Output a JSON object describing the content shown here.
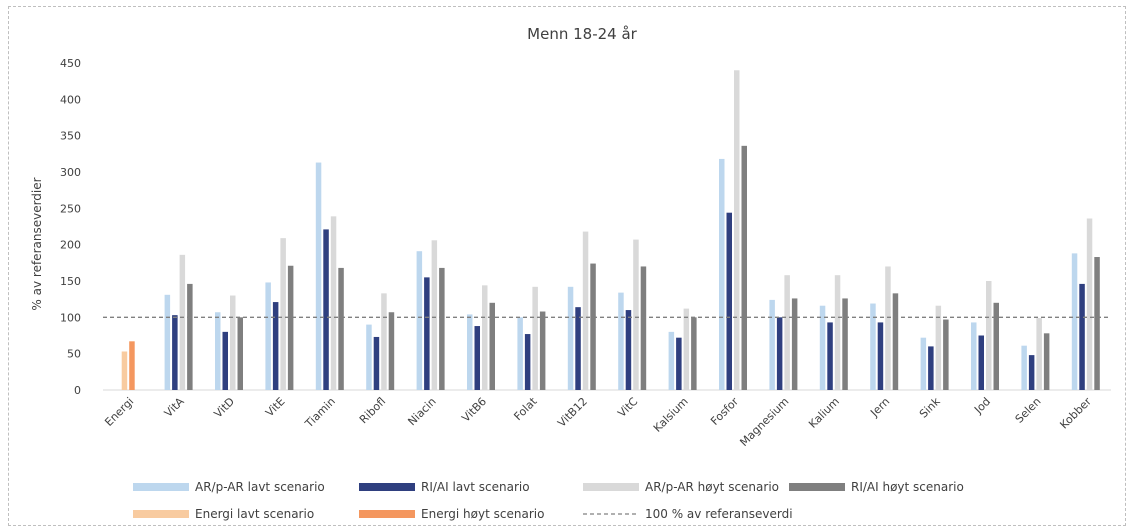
{
  "chart_data": {
    "type": "bar",
    "title": "Menn 18-24 år",
    "xlabel": "",
    "ylabel": "% av referanseverdier",
    "ylim": [
      0,
      450
    ],
    "yticks": [
      0,
      50,
      100,
      150,
      200,
      250,
      300,
      350,
      400,
      450
    ],
    "grid": false,
    "legend_position": "bottom",
    "reference_line": {
      "value": 100,
      "label": "100 % av referanseverdi",
      "color": "#808080"
    },
    "categories": [
      "Energi",
      "VitA",
      "VitD",
      "VitE",
      "Tiamin",
      "Ribofl",
      "Niacin",
      "VitB6",
      "Folat",
      "VitB12",
      "VitC",
      "Kalsium",
      "Fosfor",
      "Magnesium",
      "Kalium",
      "Jern",
      "Sink",
      "Jod",
      "Selen",
      "Kobber"
    ],
    "series": [
      {
        "name": "AR/p-AR lavt scenario",
        "color": "#bdd7ee",
        "values": [
          null,
          131,
          107,
          148,
          313,
          90,
          191,
          104,
          100,
          142,
          134,
          80,
          318,
          124,
          116,
          119,
          72,
          93,
          61,
          188
        ]
      },
      {
        "name": "RI/AI lavt scenario",
        "color": "#2f3f7f",
        "values": [
          null,
          103,
          80,
          121,
          221,
          73,
          155,
          88,
          77,
          114,
          110,
          72,
          244,
          100,
          93,
          93,
          60,
          75,
          48,
          146
        ]
      },
      {
        "name": "AR/p-AR høyt scenario",
        "color": "#d9d9d9",
        "values": [
          null,
          186,
          130,
          209,
          239,
          133,
          206,
          144,
          142,
          218,
          207,
          112,
          440,
          158,
          158,
          170,
          116,
          150,
          99,
          236
        ]
      },
      {
        "name": "RI/AI høyt scenario",
        "color": "#7f7f7f",
        "values": [
          null,
          146,
          100,
          171,
          168,
          107,
          168,
          120,
          108,
          174,
          170,
          100,
          336,
          126,
          126,
          133,
          97,
          120,
          78,
          183
        ]
      },
      {
        "name": "Energi lavt scenario",
        "color": "#f8cba0",
        "values": [
          53,
          null,
          null,
          null,
          null,
          null,
          null,
          null,
          null,
          null,
          null,
          null,
          null,
          null,
          null,
          null,
          null,
          null,
          null,
          null
        ]
      },
      {
        "name": "Energi høyt scenario",
        "color": "#f4975f",
        "values": [
          67,
          null,
          null,
          null,
          null,
          null,
          null,
          null,
          null,
          null,
          null,
          null,
          null,
          null,
          null,
          null,
          null,
          null,
          null,
          null
        ]
      }
    ]
  }
}
